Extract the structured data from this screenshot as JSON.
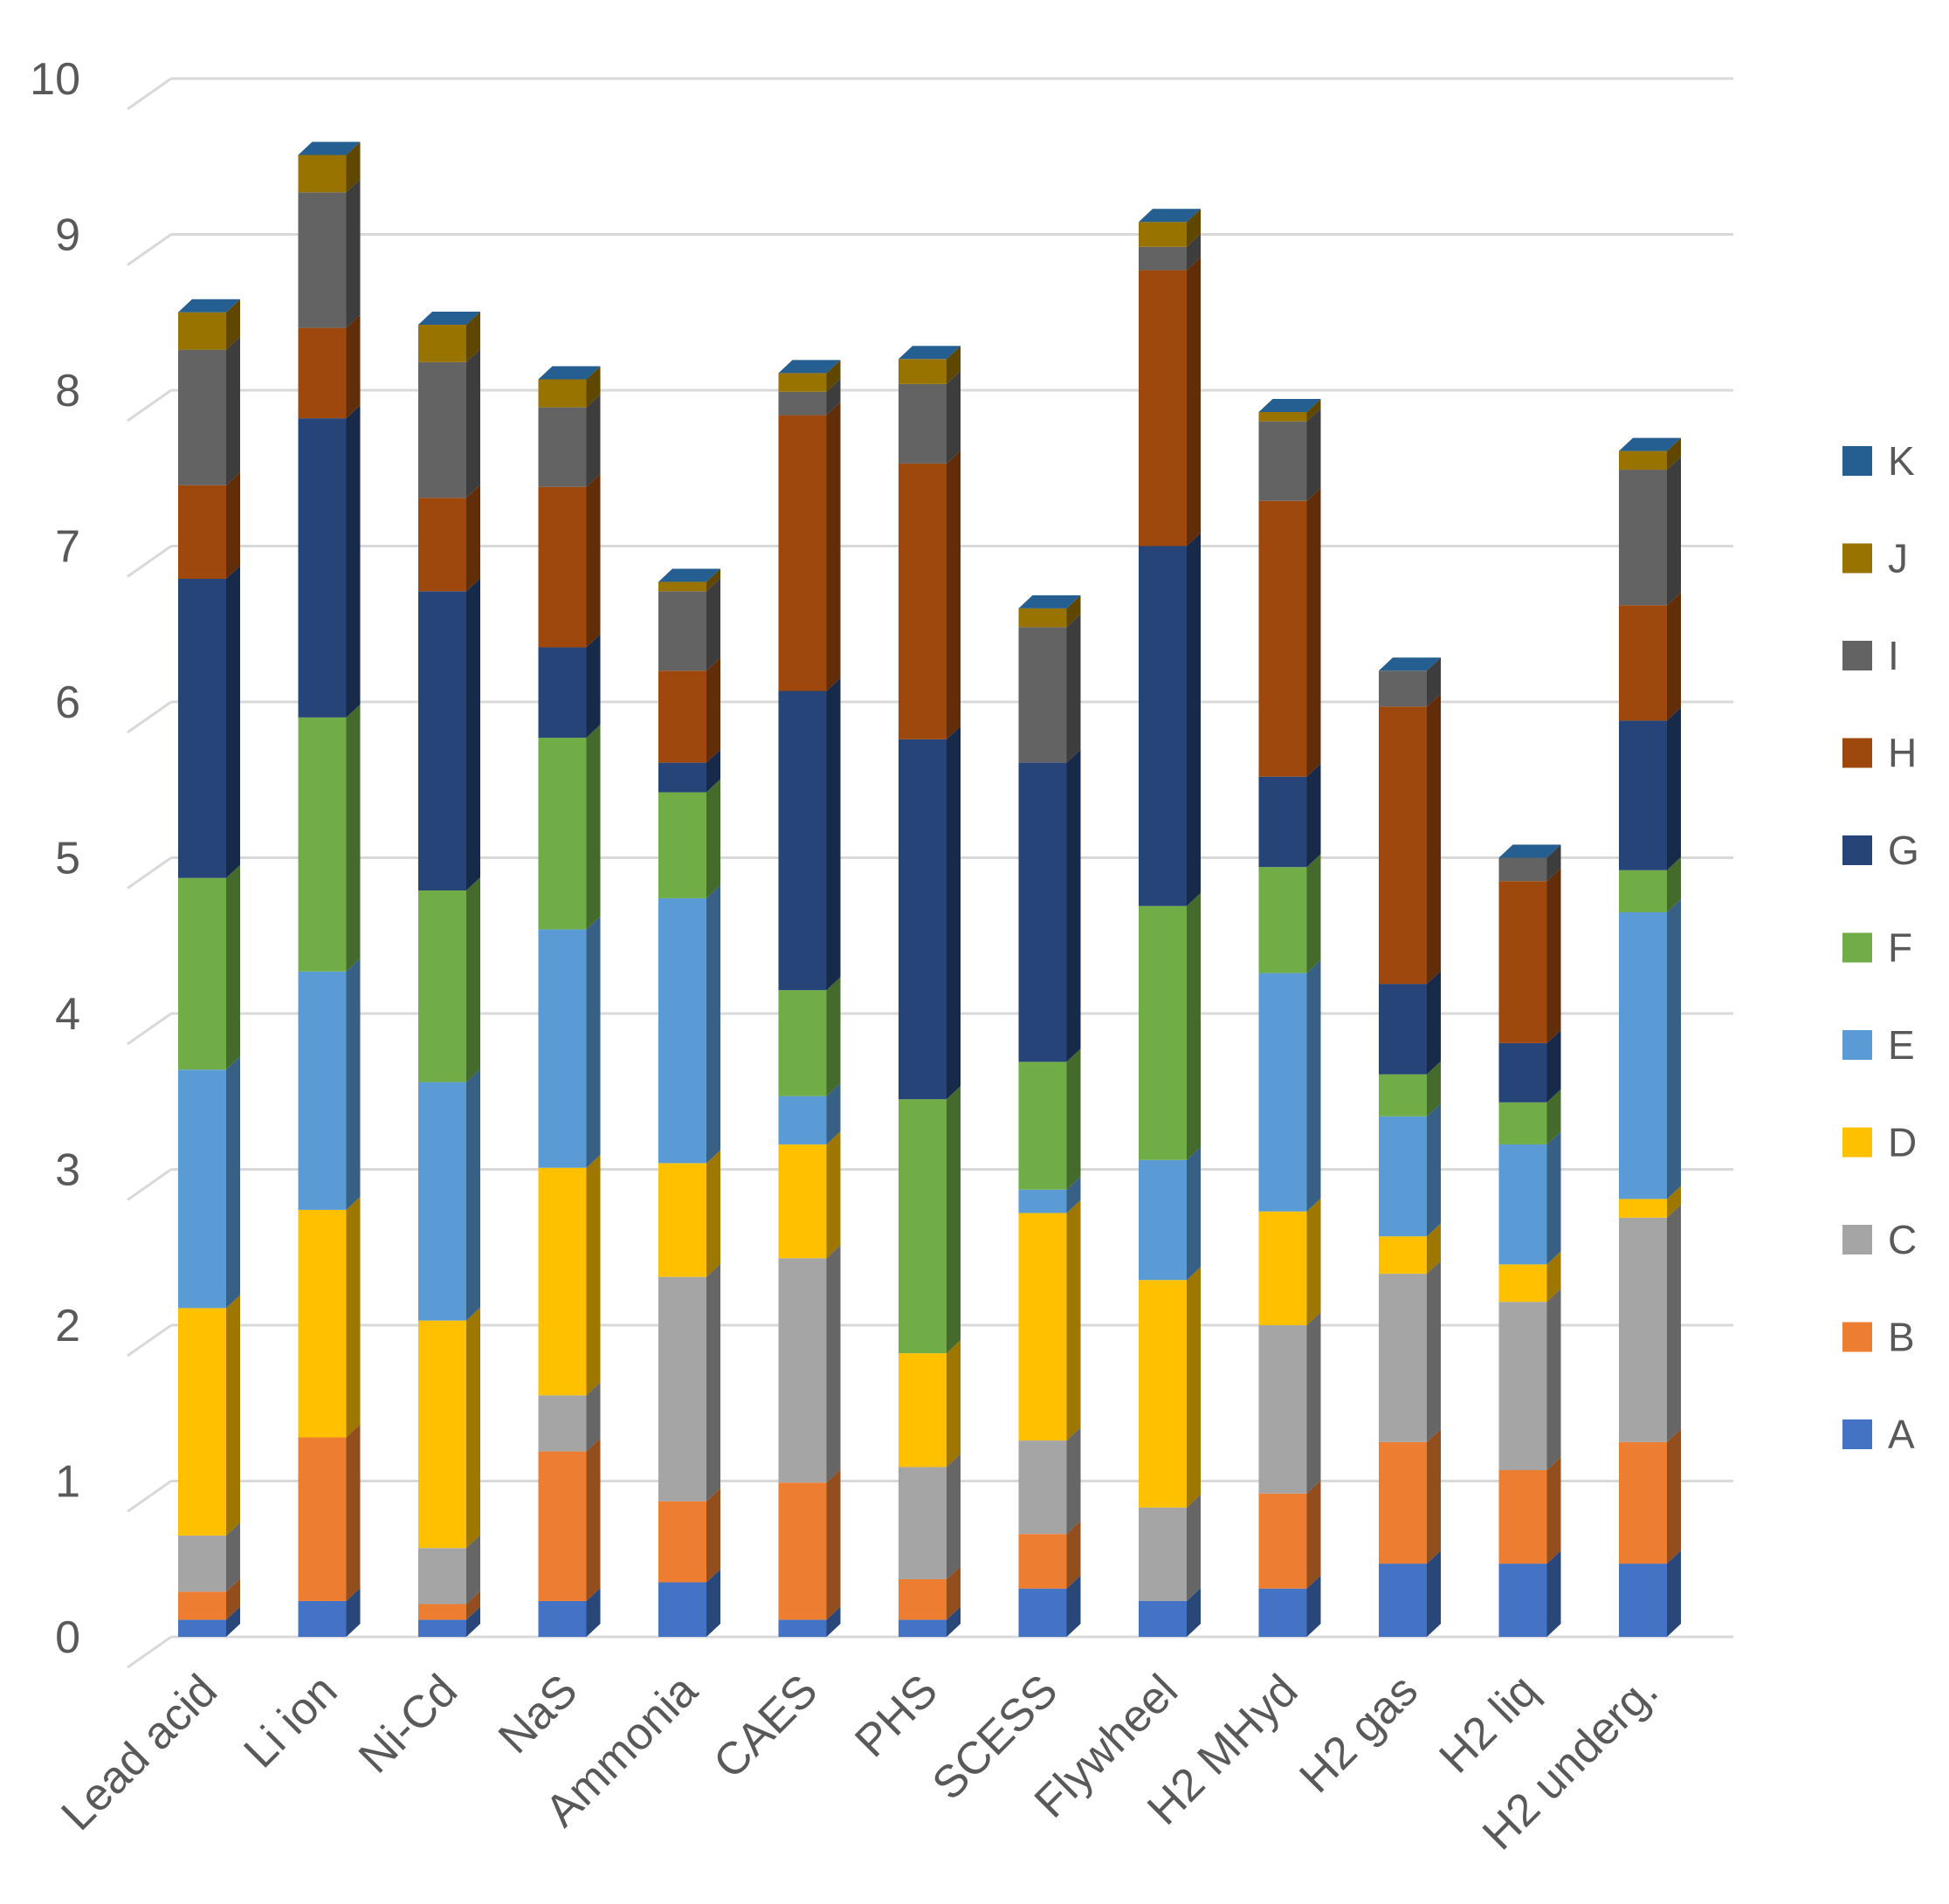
{
  "chart_data": {
    "type": "bar",
    "stacked": true,
    "three_d": true,
    "title": "",
    "xlabel": "",
    "ylabel": "",
    "ylim": [
      0,
      10
    ],
    "y_ticks": [
      "0",
      "1",
      "2",
      "3",
      "4",
      "5",
      "6",
      "7",
      "8",
      "9",
      "10"
    ],
    "grid": true,
    "legend_position": "right",
    "categories": [
      "Lead acid",
      "Li ion",
      "Ni-Cd",
      "NaS",
      "Ammonia",
      "CAES",
      "PHS",
      "SCESS",
      "Flywheel",
      "H2 MHyd",
      "H2 gas",
      "H2 liq",
      "H2 underg."
    ],
    "series": [
      {
        "name": "A",
        "color": "#4472C4",
        "values": [
          0.11,
          0.23,
          0.11,
          0.23,
          0.35,
          0.11,
          0.11,
          0.31,
          0.23,
          0.31,
          0.47,
          0.47,
          0.47
        ]
      },
      {
        "name": "B",
        "color": "#ED7D31",
        "values": [
          0.18,
          1.05,
          0.1,
          0.96,
          0.52,
          0.88,
          0.26,
          0.35,
          0.0,
          0.61,
          0.78,
          0.6,
          0.78
        ]
      },
      {
        "name": "C",
        "color": "#A5A5A5",
        "values": [
          0.36,
          0.0,
          0.36,
          0.36,
          1.44,
          1.44,
          0.72,
          0.6,
          0.6,
          1.08,
          1.08,
          1.08,
          1.44
        ]
      },
      {
        "name": "D",
        "color": "#FFC000",
        "values": [
          1.46,
          1.46,
          1.46,
          1.46,
          0.73,
          0.73,
          0.73,
          1.46,
          1.46,
          0.73,
          0.24,
          0.24,
          0.12
        ]
      },
      {
        "name": "E",
        "color": "#5B9BD5",
        "values": [
          1.53,
          1.53,
          1.53,
          1.53,
          1.7,
          0.31,
          0.0,
          0.15,
          0.77,
          1.53,
          0.77,
          0.77,
          1.84
        ]
      },
      {
        "name": "F",
        "color": "#70AD47",
        "values": [
          1.23,
          1.63,
          1.23,
          1.23,
          0.68,
          0.68,
          1.63,
          0.82,
          1.63,
          0.68,
          0.27,
          0.27,
          0.27
        ]
      },
      {
        "name": "G",
        "color": "#264478",
        "values": [
          1.92,
          1.92,
          1.92,
          0.58,
          0.19,
          1.92,
          2.31,
          1.92,
          2.31,
          0.58,
          0.58,
          0.38,
          0.96
        ]
      },
      {
        "name": "H",
        "color": "#9E480E",
        "values": [
          0.6,
          0.58,
          0.6,
          1.03,
          0.59,
          1.77,
          1.77,
          0.0,
          1.77,
          1.77,
          1.78,
          1.04,
          0.74
        ]
      },
      {
        "name": "I",
        "color": "#636363",
        "values": [
          0.87,
          0.87,
          0.87,
          0.51,
          0.51,
          0.15,
          0.51,
          0.87,
          0.15,
          0.51,
          0.23,
          0.15,
          0.87
        ]
      },
      {
        "name": "J",
        "color": "#997300",
        "values": [
          0.24,
          0.24,
          0.24,
          0.18,
          0.06,
          0.12,
          0.16,
          0.12,
          0.16,
          0.06,
          0.0,
          0.0,
          0.12
        ]
      },
      {
        "name": "K",
        "color": "#255E91",
        "values": [
          0,
          0,
          0,
          0,
          0,
          0,
          0,
          0,
          0,
          0,
          0,
          0,
          0
        ]
      }
    ]
  }
}
